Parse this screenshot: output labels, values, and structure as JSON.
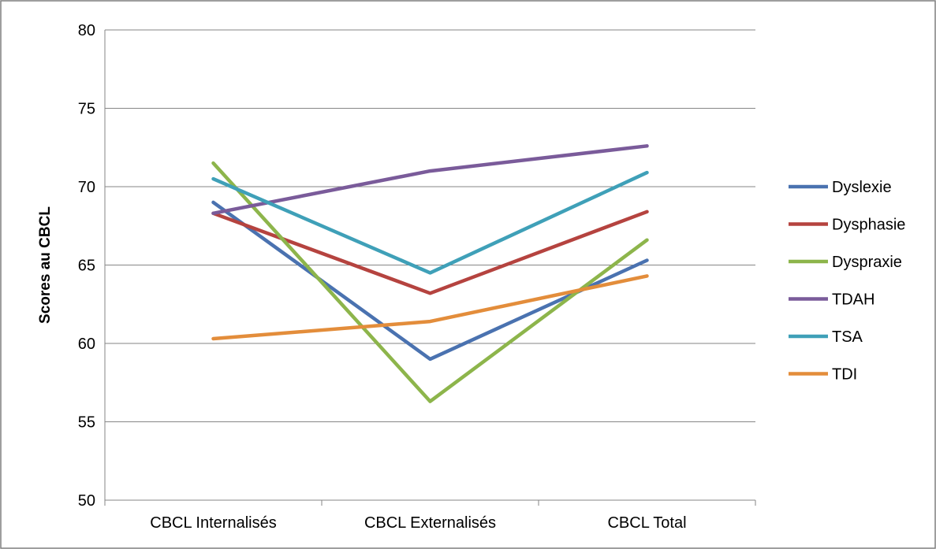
{
  "chart_data": {
    "type": "line",
    "title": "",
    "xlabel": "",
    "ylabel": "Scores au CBCL",
    "categories": [
      "CBCL Internalisés",
      "CBCL Externalisés",
      "CBCL Total"
    ],
    "ylim": [
      50,
      80
    ],
    "yticks": [
      50,
      55,
      60,
      65,
      70,
      75,
      80
    ],
    "grid": true,
    "legend_position": "right",
    "series": [
      {
        "name": "Dyslexie",
        "color": "#4a72b0",
        "values": [
          69.0,
          59.0,
          65.3
        ]
      },
      {
        "name": "Dysphasie",
        "color": "#b5433f",
        "values": [
          68.3,
          63.2,
          68.4
        ]
      },
      {
        "name": "Dyspraxie",
        "color": "#8db54b",
        "values": [
          71.5,
          56.3,
          66.6
        ]
      },
      {
        "name": "TDAH",
        "color": "#7a5b9a",
        "values": [
          68.3,
          71.0,
          72.6
        ]
      },
      {
        "name": "TSA",
        "color": "#3fa0b8",
        "values": [
          70.5,
          64.5,
          70.9
        ]
      },
      {
        "name": "TDI",
        "color": "#e38d3b",
        "values": [
          60.3,
          61.4,
          64.3
        ]
      }
    ]
  }
}
